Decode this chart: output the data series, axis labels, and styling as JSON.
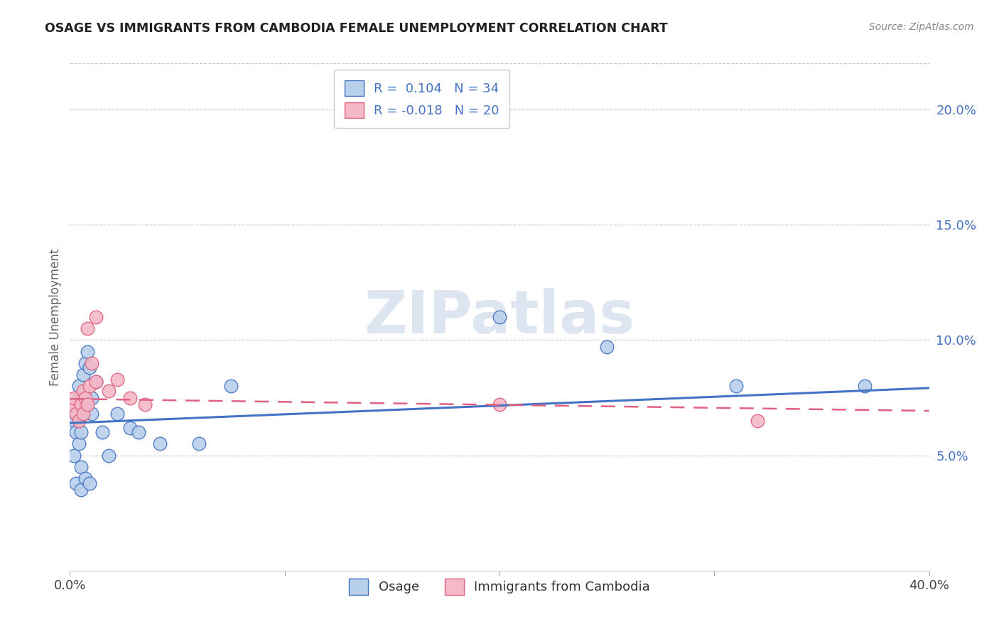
{
  "title": "OSAGE VS IMMIGRANTS FROM CAMBODIA FEMALE UNEMPLOYMENT CORRELATION CHART",
  "source": "Source: ZipAtlas.com",
  "ylabel": "Female Unemployment",
  "right_yticks": [
    "5.0%",
    "10.0%",
    "15.0%",
    "20.0%"
  ],
  "right_ytick_vals": [
    0.05,
    0.1,
    0.15,
    0.2
  ],
  "xlim": [
    0.0,
    0.4
  ],
  "ylim": [
    0.0,
    0.22
  ],
  "osage_x": [
    0.002,
    0.003,
    0.004,
    0.002,
    0.003,
    0.004,
    0.004,
    0.005,
    0.005,
    0.006,
    0.007,
    0.006,
    0.007,
    0.008,
    0.009,
    0.01,
    0.01,
    0.012,
    0.015,
    0.018,
    0.022,
    0.028,
    0.032,
    0.042,
    0.06,
    0.075,
    0.003,
    0.005,
    0.007,
    0.009,
    0.2,
    0.25,
    0.31,
    0.37
  ],
  "osage_y": [
    0.065,
    0.06,
    0.075,
    0.05,
    0.068,
    0.055,
    0.08,
    0.06,
    0.045,
    0.085,
    0.09,
    0.068,
    0.072,
    0.095,
    0.088,
    0.075,
    0.068,
    0.082,
    0.06,
    0.05,
    0.068,
    0.062,
    0.06,
    0.055,
    0.055,
    0.08,
    0.038,
    0.035,
    0.04,
    0.038,
    0.11,
    0.097,
    0.08,
    0.08
  ],
  "cambodia_x": [
    0.001,
    0.002,
    0.003,
    0.004,
    0.005,
    0.006,
    0.006,
    0.007,
    0.008,
    0.009,
    0.01,
    0.012,
    0.018,
    0.022,
    0.028,
    0.035,
    0.2,
    0.32,
    0.008,
    0.012
  ],
  "cambodia_y": [
    0.072,
    0.075,
    0.068,
    0.065,
    0.072,
    0.078,
    0.068,
    0.075,
    0.072,
    0.08,
    0.09,
    0.082,
    0.078,
    0.083,
    0.075,
    0.072,
    0.072,
    0.065,
    0.105,
    0.11
  ],
  "osage_R": 0.104,
  "osage_N": 34,
  "cambodia_R": -0.018,
  "cambodia_N": 20,
  "osage_color": "#b8d0ea",
  "osage_line_color": "#4472c4",
  "cambodia_color": "#f4b8c8",
  "cambodia_line_color": "#e06080",
  "grid_color": "#c8c8c8",
  "background_color": "#ffffff"
}
